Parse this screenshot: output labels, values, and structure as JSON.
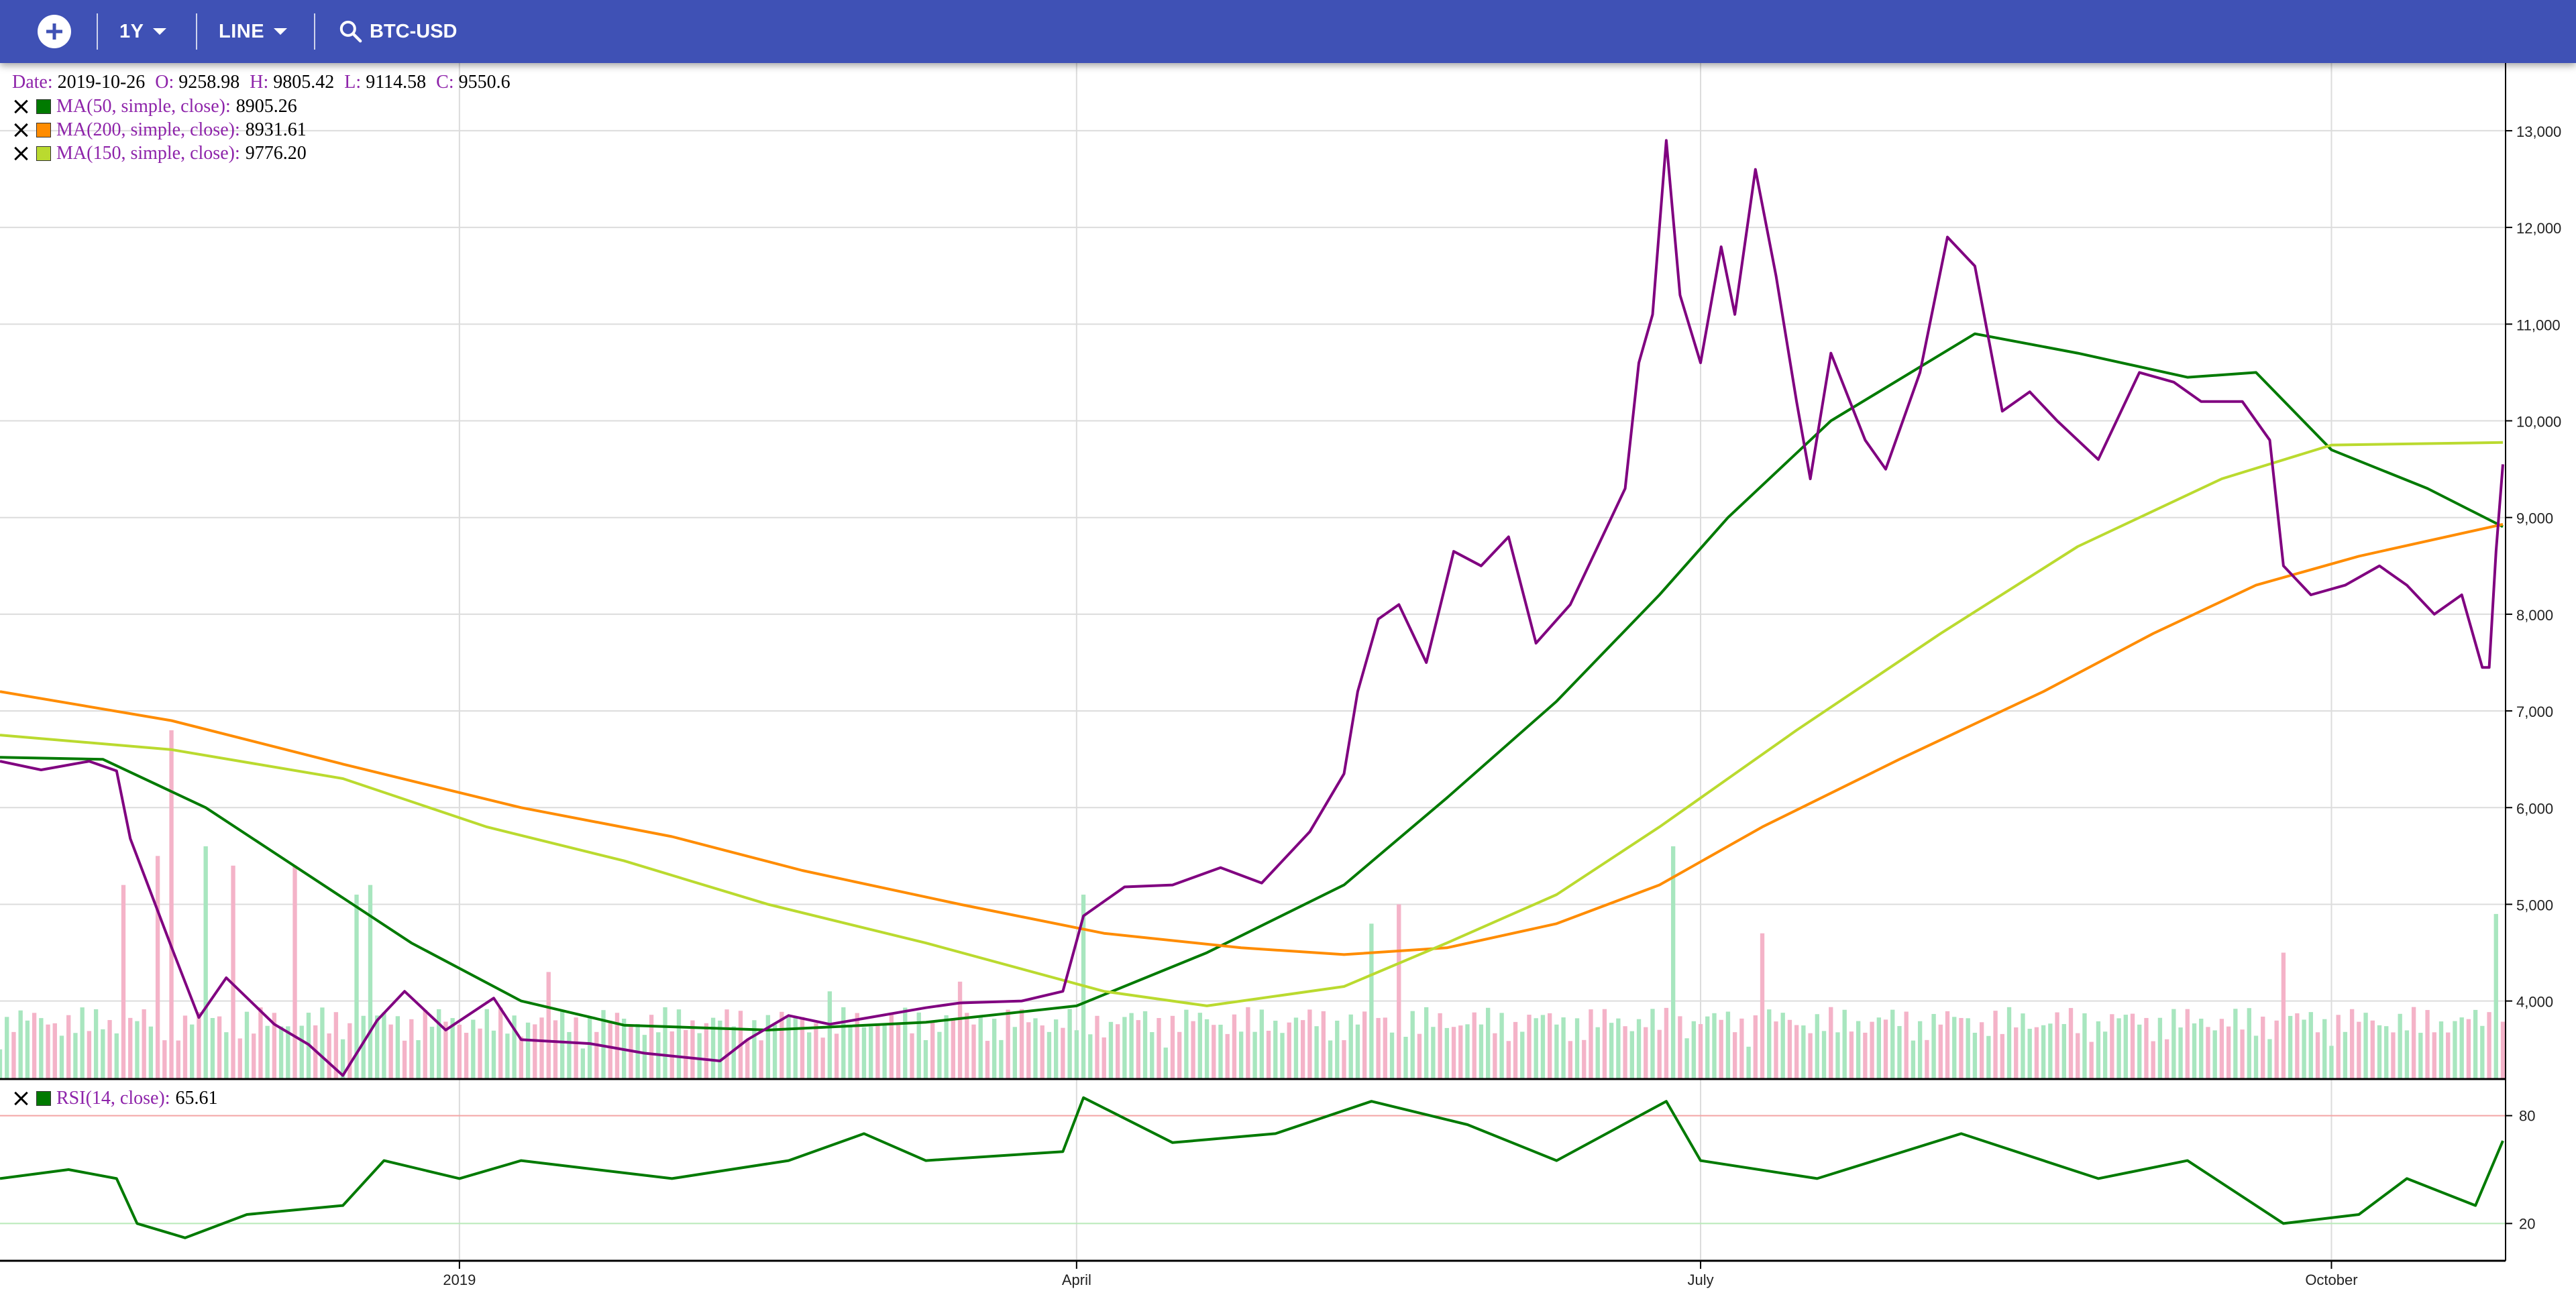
{
  "toolbar": {
    "range_label": "1Y",
    "chart_type_label": "LINE",
    "symbol": "BTC-USD",
    "add_icon": "add-circle-icon",
    "search_icon": "search-icon"
  },
  "ohlc": {
    "date_label": "Date:",
    "date": "2019-10-26",
    "o_label": "O:",
    "o": "9258.98",
    "h_label": "H:",
    "h": "9805.42",
    "l_label": "L:",
    "l": "9114.58",
    "c_label": "C:",
    "c": "9550.6"
  },
  "legend": {
    "close_icon": "close-icon",
    "ma50": {
      "name": "MA(50, simple, close):",
      "value": "8905.26",
      "color": "#007a00"
    },
    "ma200": {
      "name": "MA(200, simple, close):",
      "value": "8931.61",
      "color": "#ff8c00"
    },
    "ma150": {
      "name": "MA(150, simple, close):",
      "value": "9776.20",
      "color": "#bada2f"
    },
    "rsi": {
      "name": "RSI(14, close):",
      "value": "65.61",
      "color": "#007a00"
    }
  },
  "chart_data": [
    {
      "type": "line",
      "x_range": [
        "2018-10-26",
        "2019-10-26"
      ],
      "x_ticks": [
        {
          "date": "2019-01-01",
          "label": "2019"
        },
        {
          "date": "2019-04-01",
          "label": "April"
        },
        {
          "date": "2019-07-01",
          "label": "July"
        },
        {
          "date": "2019-10-01",
          "label": "October"
        }
      ],
      "ylim": [
        3200,
        13700
      ],
      "y_ticks": [
        4000,
        5000,
        6000,
        7000,
        8000,
        9000,
        10000,
        11000,
        12000,
        13000
      ],
      "grid": true,
      "legend_position": "top-left",
      "series": [
        {
          "color": "#800080",
          "points": [
            [
              "2018-10-26",
              6480
            ],
            [
              "2018-11-01",
              6390
            ],
            [
              "2018-11-08",
              6480
            ],
            [
              "2018-11-12",
              6380
            ],
            [
              "2018-11-14",
              5680
            ],
            [
              "2018-11-20",
              4560
            ],
            [
              "2018-11-24",
              3830
            ],
            [
              "2018-11-28",
              4240
            ],
            [
              "2018-12-05",
              3760
            ],
            [
              "2018-12-10",
              3550
            ],
            [
              "2018-12-15",
              3230
            ],
            [
              "2018-12-20",
              3800
            ],
            [
              "2018-12-24",
              4100
            ],
            [
              "2018-12-30",
              3700
            ],
            [
              "2019-01-06",
              4030
            ],
            [
              "2019-01-10",
              3600
            ],
            [
              "2019-01-20",
              3560
            ],
            [
              "2019-01-28",
              3460
            ],
            [
              "2019-02-08",
              3380
            ],
            [
              "2019-02-12",
              3600
            ],
            [
              "2019-02-18",
              3850
            ],
            [
              "2019-02-24",
              3760
            ],
            [
              "2019-03-01",
              3820
            ],
            [
              "2019-03-10",
              3930
            ],
            [
              "2019-03-15",
              3980
            ],
            [
              "2019-03-24",
              4000
            ],
            [
              "2019-03-30",
              4100
            ],
            [
              "2019-04-02",
              4880
            ],
            [
              "2019-04-08",
              5180
            ],
            [
              "2019-04-15",
              5200
            ],
            [
              "2019-04-22",
              5380
            ],
            [
              "2019-04-28",
              5220
            ],
            [
              "2019-05-05",
              5750
            ],
            [
              "2019-05-10",
              6350
            ],
            [
              "2019-05-12",
              7200
            ],
            [
              "2019-05-15",
              7950
            ],
            [
              "2019-05-18",
              8100
            ],
            [
              "2019-05-22",
              7500
            ],
            [
              "2019-05-26",
              8650
            ],
            [
              "2019-05-30",
              8500
            ],
            [
              "2019-06-03",
              8800
            ],
            [
              "2019-06-07",
              7700
            ],
            [
              "2019-06-12",
              8100
            ],
            [
              "2019-06-16",
              8700
            ],
            [
              "2019-06-20",
              9300
            ],
            [
              "2019-06-22",
              10600
            ],
            [
              "2019-06-24",
              11100
            ],
            [
              "2019-06-26",
              12900
            ],
            [
              "2019-06-28",
              11300
            ],
            [
              "2019-07-01",
              10600
            ],
            [
              "2019-07-04",
              11800
            ],
            [
              "2019-07-06",
              11100
            ],
            [
              "2019-07-09",
              12600
            ],
            [
              "2019-07-12",
              11500
            ],
            [
              "2019-07-15",
              10200
            ],
            [
              "2019-07-17",
              9400
            ],
            [
              "2019-07-20",
              10700
            ],
            [
              "2019-07-25",
              9800
            ],
            [
              "2019-07-28",
              9500
            ],
            [
              "2019-08-02",
              10500
            ],
            [
              "2019-08-06",
              11900
            ],
            [
              "2019-08-10",
              11600
            ],
            [
              "2019-08-14",
              10100
            ],
            [
              "2019-08-18",
              10300
            ],
            [
              "2019-08-22",
              10000
            ],
            [
              "2019-08-28",
              9600
            ],
            [
              "2019-09-03",
              10500
            ],
            [
              "2019-09-08",
              10400
            ],
            [
              "2019-09-12",
              10200
            ],
            [
              "2019-09-18",
              10200
            ],
            [
              "2019-09-22",
              9800
            ],
            [
              "2019-09-24",
              8500
            ],
            [
              "2019-09-28",
              8200
            ],
            [
              "2019-10-03",
              8300
            ],
            [
              "2019-10-08",
              8500
            ],
            [
              "2019-10-12",
              8300
            ],
            [
              "2019-10-16",
              8000
            ],
            [
              "2019-10-20",
              8200
            ],
            [
              "2019-10-23",
              7450
            ],
            [
              "2019-10-24",
              7450
            ],
            [
              "2019-10-25",
              8650
            ],
            [
              "2019-10-26",
              9550
            ]
          ]
        },
        {
          "name": "MA(50, simple, close)",
          "color": "#007a00",
          "points": [
            [
              "2018-10-26",
              6520
            ],
            [
              "2018-11-10",
              6500
            ],
            [
              "2018-11-25",
              6000
            ],
            [
              "2018-12-10",
              5300
            ],
            [
              "2018-12-25",
              4600
            ],
            [
              "2019-01-10",
              4000
            ],
            [
              "2019-01-25",
              3750
            ],
            [
              "2019-02-15",
              3700
            ],
            [
              "2019-03-10",
              3780
            ],
            [
              "2019-04-01",
              3950
            ],
            [
              "2019-04-20",
              4500
            ],
            [
              "2019-05-10",
              5200
            ],
            [
              "2019-05-25",
              6100
            ],
            [
              "2019-06-10",
              7100
            ],
            [
              "2019-06-25",
              8200
            ],
            [
              "2019-07-05",
              9000
            ],
            [
              "2019-07-20",
              10000
            ],
            [
              "2019-08-10",
              10900
            ],
            [
              "2019-08-25",
              10700
            ],
            [
              "2019-09-10",
              10450
            ],
            [
              "2019-09-20",
              10500
            ],
            [
              "2019-10-01",
              9700
            ],
            [
              "2019-10-15",
              9300
            ],
            [
              "2019-10-26",
              8905
            ]
          ]
        },
        {
          "name": "MA(200, simple, close)",
          "color": "#ff8c00",
          "points": [
            [
              "2018-10-26",
              7200
            ],
            [
              "2018-11-20",
              6900
            ],
            [
              "2018-12-15",
              6450
            ],
            [
              "2019-01-10",
              6000
            ],
            [
              "2019-02-01",
              5700
            ],
            [
              "2019-02-20",
              5350
            ],
            [
              "2019-03-15",
              5000
            ],
            [
              "2019-04-05",
              4700
            ],
            [
              "2019-04-25",
              4550
            ],
            [
              "2019-05-10",
              4480
            ],
            [
              "2019-05-25",
              4550
            ],
            [
              "2019-06-10",
              4800
            ],
            [
              "2019-06-25",
              5200
            ],
            [
              "2019-07-10",
              5800
            ],
            [
              "2019-07-30",
              6500
            ],
            [
              "2019-08-20",
              7200
            ],
            [
              "2019-09-05",
              7800
            ],
            [
              "2019-09-20",
              8300
            ],
            [
              "2019-10-05",
              8600
            ],
            [
              "2019-10-26",
              8930
            ]
          ]
        },
        {
          "name": "MA(150, simple, close)",
          "color": "#bada2f",
          "points": [
            [
              "2018-10-26",
              6750
            ],
            [
              "2018-11-20",
              6600
            ],
            [
              "2018-12-15",
              6300
            ],
            [
              "2019-01-05",
              5800
            ],
            [
              "2019-01-25",
              5450
            ],
            [
              "2019-02-15",
              5000
            ],
            [
              "2019-03-10",
              4600
            ],
            [
              "2019-04-05",
              4100
            ],
            [
              "2019-04-20",
              3950
            ],
            [
              "2019-05-10",
              4150
            ],
            [
              "2019-05-25",
              4600
            ],
            [
              "2019-06-10",
              5100
            ],
            [
              "2019-06-25",
              5800
            ],
            [
              "2019-07-15",
              6800
            ],
            [
              "2019-08-05",
              7800
            ],
            [
              "2019-08-25",
              8700
            ],
            [
              "2019-09-15",
              9400
            ],
            [
              "2019-10-01",
              9750
            ],
            [
              "2019-10-26",
              9776
            ]
          ]
        }
      ],
      "volume": {
        "color_up": "#a8e6bf",
        "color_down": "#f4b3c8",
        "points": [
          [
            "2018-11-13",
            5200,
            "down"
          ],
          [
            "2018-11-18",
            5500,
            "down"
          ],
          [
            "2018-11-20",
            6800,
            "down"
          ],
          [
            "2018-11-25",
            5600,
            "up"
          ],
          [
            "2018-11-29",
            5400,
            "down"
          ],
          [
            "2018-12-08",
            5400,
            "down"
          ],
          [
            "2018-12-17",
            5100,
            "up"
          ],
          [
            "2018-12-19",
            5200,
            "up"
          ],
          [
            "2019-01-14",
            4300,
            "down"
          ],
          [
            "2019-02-24",
            4100,
            "up"
          ],
          [
            "2019-03-15",
            4200,
            "down"
          ],
          [
            "2019-04-02",
            5100,
            "up"
          ],
          [
            "2019-05-14",
            4800,
            "up"
          ],
          [
            "2019-05-18",
            5000,
            "down"
          ],
          [
            "2019-06-27",
            5600,
            "up"
          ],
          [
            "2019-07-10",
            4700,
            "down"
          ],
          [
            "2019-09-24",
            4500,
            "down"
          ],
          [
            "2019-10-25",
            4900,
            "up"
          ]
        ]
      }
    },
    {
      "type": "line",
      "name": "RSI(14, close)",
      "ylim": [
        0,
        100
      ],
      "y_ticks": [
        20,
        80
      ],
      "bands": [
        20,
        80
      ],
      "series": [
        {
          "name": "RSI(14, close)",
          "color": "#007a00",
          "points": [
            [
              "2018-10-26",
              45
            ],
            [
              "2018-11-05",
              50
            ],
            [
              "2018-11-12",
              45
            ],
            [
              "2018-11-15",
              20
            ],
            [
              "2018-11-22",
              12
            ],
            [
              "2018-12-01",
              25
            ],
            [
              "2018-12-15",
              30
            ],
            [
              "2018-12-21",
              55
            ],
            [
              "2019-01-01",
              45
            ],
            [
              "2019-01-10",
              55
            ],
            [
              "2019-02-01",
              45
            ],
            [
              "2019-02-18",
              55
            ],
            [
              "2019-03-01",
              70
            ],
            [
              "2019-03-10",
              55
            ],
            [
              "2019-03-30",
              60
            ],
            [
              "2019-04-02",
              90
            ],
            [
              "2019-04-15",
              65
            ],
            [
              "2019-04-30",
              70
            ],
            [
              "2019-05-14",
              88
            ],
            [
              "2019-05-28",
              75
            ],
            [
              "2019-06-10",
              55
            ],
            [
              "2019-06-26",
              88
            ],
            [
              "2019-07-01",
              55
            ],
            [
              "2019-07-18",
              45
            ],
            [
              "2019-08-08",
              70
            ],
            [
              "2019-08-28",
              45
            ],
            [
              "2019-09-10",
              55
            ],
            [
              "2019-09-24",
              20
            ],
            [
              "2019-10-05",
              25
            ],
            [
              "2019-10-12",
              45
            ],
            [
              "2019-10-22",
              30
            ],
            [
              "2019-10-26",
              66
            ]
          ]
        }
      ]
    }
  ]
}
